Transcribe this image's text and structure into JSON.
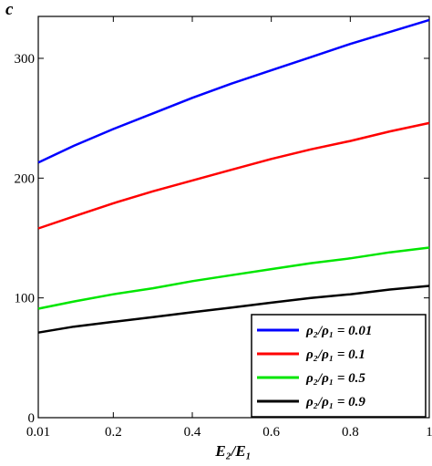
{
  "chart_data": {
    "type": "line",
    "xlabel": "E₂/E₁",
    "ylabel": "c",
    "xlim": [
      0.01,
      1
    ],
    "ylim": [
      0,
      335
    ],
    "x_ticks": [
      0.01,
      0.2,
      0.4,
      0.6,
      0.8,
      1
    ],
    "x_tick_labels": [
      "0.01",
      "0.2",
      "0.4",
      "0.6",
      "0.8",
      "1"
    ],
    "y_ticks": [
      0,
      100,
      200,
      300
    ],
    "y_tick_labels": [
      "0",
      "100",
      "200",
      "300"
    ],
    "grid": false,
    "legend_position": "bottom-right",
    "x": [
      0.01,
      0.1,
      0.2,
      0.3,
      0.4,
      0.5,
      0.6,
      0.7,
      0.8,
      0.9,
      1.0
    ],
    "series": [
      {
        "name": "ρ₂/ρ₁ = 0.01",
        "color": "#0000ff",
        "values": [
          213,
          227,
          241,
          254,
          267,
          279,
          290,
          301,
          312,
          322,
          332
        ]
      },
      {
        "name": "ρ₂/ρ₁ = 0.1",
        "color": "#ff0000",
        "values": [
          158,
          168,
          179,
          189,
          198,
          207,
          216,
          224,
          231,
          239,
          246
        ]
      },
      {
        "name": "ρ₂/ρ₁ = 0.5",
        "color": "#00e600",
        "values": [
          91,
          97,
          103,
          108,
          114,
          119,
          124,
          129,
          133,
          138,
          142
        ]
      },
      {
        "name": "ρ₂/ρ₁ = 0.9",
        "color": "#000000",
        "values": [
          71,
          76,
          80,
          84,
          88,
          92,
          96,
          100,
          103,
          107,
          110
        ]
      }
    ]
  }
}
